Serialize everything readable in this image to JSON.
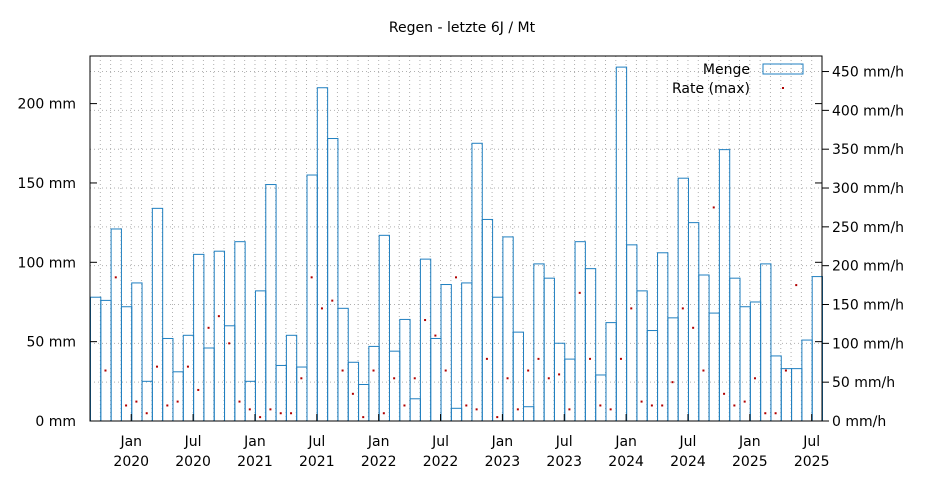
{
  "chart_data": {
    "type": "bar",
    "title": "Regen  -  letzte 6J / Mt",
    "y_left": {
      "min": 0,
      "max": 230,
      "unit": "mm",
      "ticks": [
        0,
        50,
        100,
        150,
        200
      ],
      "tick_labels": [
        "0 mm",
        "50 mm",
        "100 mm",
        "150 mm",
        "200 mm"
      ]
    },
    "y_right": {
      "min": 0,
      "max": 470,
      "unit": "mm/h",
      "ticks": [
        0,
        50,
        100,
        150,
        200,
        250,
        300,
        350,
        400,
        450
      ],
      "tick_labels": [
        "0 mm/h",
        "50 mm/h",
        "100 mm/h",
        "150 mm/h",
        "200 mm/h",
        "250 mm/h",
        "300 mm/h",
        "350 mm/h",
        "400 mm/h",
        "450 mm/h"
      ]
    },
    "x_ticks": [
      {
        "index": 4,
        "month": "Jan",
        "year": "2020"
      },
      {
        "index": 10,
        "month": "Jul",
        "year": "2020"
      },
      {
        "index": 16,
        "month": "Jan",
        "year": "2021"
      },
      {
        "index": 22,
        "month": "Jul",
        "year": "2021"
      },
      {
        "index": 28,
        "month": "Jan",
        "year": "2022"
      },
      {
        "index": 34,
        "month": "Jul",
        "year": "2022"
      },
      {
        "index": 40,
        "month": "Jan",
        "year": "2023"
      },
      {
        "index": 46,
        "month": "Jul",
        "year": "2023"
      },
      {
        "index": 52,
        "month": "Jan",
        "year": "2024"
      },
      {
        "index": 58,
        "month": "Jul",
        "year": "2024"
      },
      {
        "index": 64,
        "month": "Jan",
        "year": "2025"
      },
      {
        "index": 70,
        "month": "Jul",
        "year": "2025"
      }
    ],
    "grid": true,
    "legend_position": "top-right",
    "colors": {
      "bars": "#1f7fc0",
      "rate": "#b00000"
    },
    "series": [
      {
        "name": "Menge",
        "type": "bar",
        "axis": "left",
        "values": [
          78,
          76,
          121,
          72,
          87,
          25,
          134,
          52,
          31,
          54,
          105,
          46,
          107,
          60,
          113,
          25,
          82,
          149,
          35,
          54,
          34,
          155,
          210,
          178,
          71,
          37,
          23,
          47,
          117,
          44,
          64,
          14,
          102,
          52,
          86,
          8,
          87,
          175,
          127,
          78,
          116,
          56,
          9,
          99,
          90,
          49,
          39,
          113,
          96,
          29,
          62,
          223,
          111,
          82,
          57,
          106,
          65,
          153,
          125,
          92,
          68,
          171,
          90,
          72,
          75,
          99,
          41,
          33,
          33,
          51,
          91
        ]
      },
      {
        "name": "Rate (max)",
        "type": "scatter",
        "axis": "right",
        "values": [
          null,
          65,
          185,
          20,
          25,
          10,
          70,
          20,
          25,
          70,
          40,
          120,
          135,
          100,
          25,
          15,
          5,
          15,
          10,
          10,
          55,
          185,
          145,
          155,
          65,
          35,
          5,
          65,
          10,
          55,
          20,
          55,
          130,
          110,
          65,
          185,
          20,
          15,
          80,
          5,
          55,
          15,
          65,
          80,
          55,
          60,
          15,
          165,
          80,
          20,
          15,
          80,
          145,
          25,
          20,
          20,
          50,
          145,
          120,
          65,
          275,
          35,
          20,
          25,
          55,
          10,
          10,
          65,
          175
        ]
      }
    ]
  }
}
